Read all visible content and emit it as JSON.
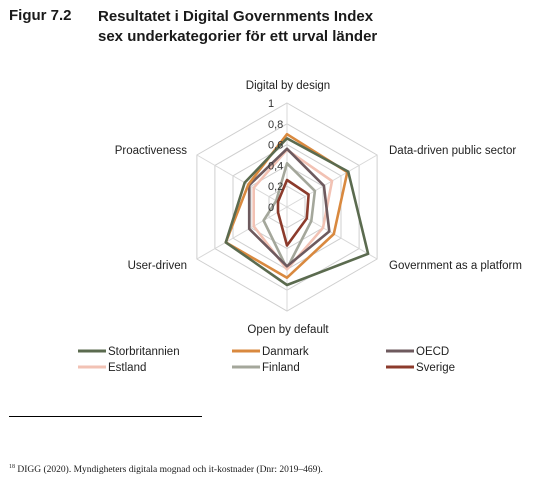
{
  "figure": {
    "label": "Figur 7.2",
    "title": "Resultatet i Digital Governments Index sex underkategorier för ett urval länder"
  },
  "chart_data": {
    "type": "radar",
    "axes": [
      "Digital by design",
      "Data-driven public sector",
      "Government as a platform",
      "Open by default",
      "User-driven",
      "Proactiveness"
    ],
    "ticks": [
      "0",
      "0,2",
      "0,4",
      "0,6",
      "0,8",
      "1"
    ],
    "rlim": [
      0,
      1
    ],
    "grid": true,
    "legend_position": "bottom",
    "series": [
      {
        "name": "Storbritannien",
        "color": "#5b6b4f",
        "values": [
          0.66,
          0.68,
          0.9,
          0.75,
          0.68,
          0.47
        ]
      },
      {
        "name": "Danmark",
        "color": "#d9893f",
        "values": [
          0.7,
          0.67,
          0.52,
          0.68,
          0.68,
          0.43
        ]
      },
      {
        "name": "OECD",
        "color": "#6e5a5e",
        "values": [
          0.56,
          0.41,
          0.47,
          0.57,
          0.42,
          0.42
        ]
      },
      {
        "name": "Estland",
        "color": "#f2c2b4",
        "values": [
          0.55,
          0.5,
          0.4,
          0.6,
          0.37,
          0.37
        ]
      },
      {
        "name": "Finland",
        "color": "#a4a79b",
        "values": [
          0.42,
          0.31,
          0.27,
          0.59,
          0.26,
          0.12
        ]
      },
      {
        "name": "Sverige",
        "color": "#8c3b2c",
        "values": [
          0.26,
          0.24,
          0.22,
          0.37,
          0.1,
          0.1
        ]
      }
    ]
  },
  "footnote": {
    "number": "18",
    "text": "DIGG (2020). Myndigheters digitala mognad och it-kostnader (Dnr: 2019–469)."
  }
}
